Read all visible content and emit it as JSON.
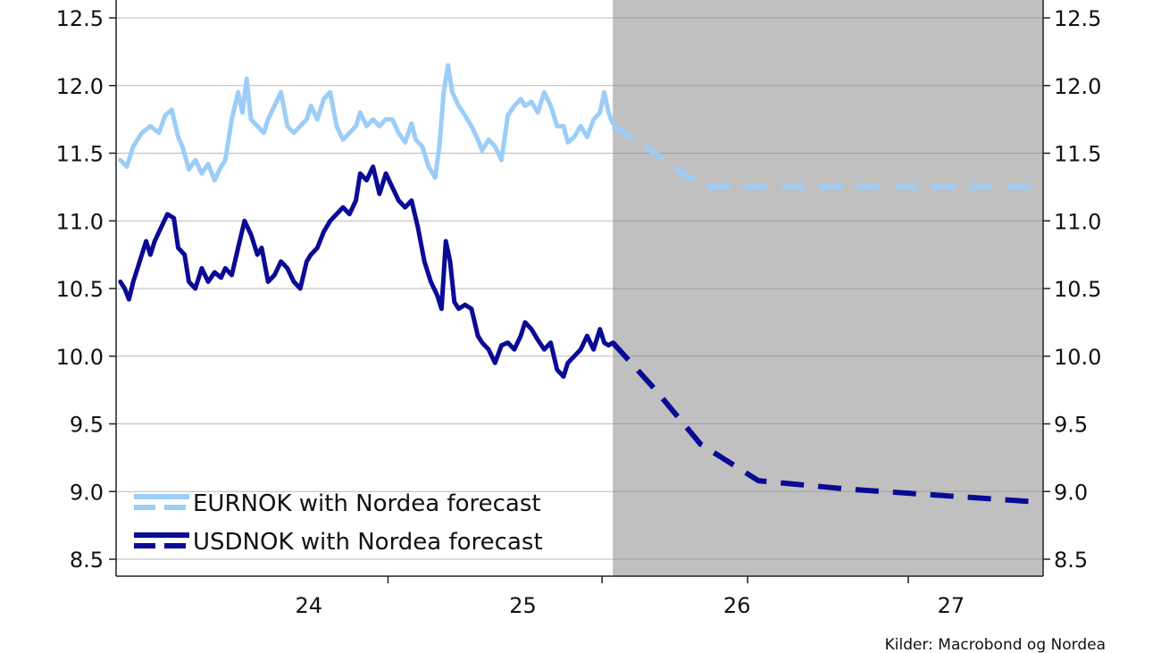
{
  "chart_data": {
    "type": "line",
    "source": "Kilder: Macrobond og Nordea",
    "y_axis": {
      "min": 8.5,
      "max": 12.5,
      "ticks": [
        "12.5",
        "12.0",
        "11.5",
        "11.0",
        "10.5",
        "10.0",
        "9.5",
        "9.0",
        "8.5"
      ],
      "tick_values": [
        12.5,
        12.0,
        11.5,
        11.0,
        10.5,
        10.0,
        9.5,
        9.0,
        8.5
      ],
      "grid": true,
      "right_axis_mirrors_left": true
    },
    "x_axis": {
      "labels": [
        {
          "label": "24",
          "x": 2024.5
        },
        {
          "label": "25",
          "x": 2025.5
        },
        {
          "label": "26",
          "x": 2026.5
        },
        {
          "label": "27",
          "x": 2027.5
        }
      ],
      "year_ticks": [
        2024.87,
        2025.87,
        2026.55,
        2027.3
      ],
      "range": [
        2023.6,
        2027.93
      ]
    },
    "forecast_region": {
      "start": 2025.92,
      "end": 2027.93,
      "color": "#c0c0c0"
    },
    "legend": {
      "placement": "bottom-left",
      "entries": [
        "EURNOK with Nordea forecast",
        "USDNOK with Nordea forecast"
      ]
    },
    "series": [
      {
        "name": "EURNOK with Nordea forecast",
        "color": "#9ccdf7",
        "history": [
          [
            2023.62,
            11.45
          ],
          [
            2023.65,
            11.4
          ],
          [
            2023.68,
            11.55
          ],
          [
            2023.72,
            11.65
          ],
          [
            2023.76,
            11.7
          ],
          [
            2023.8,
            11.65
          ],
          [
            2023.83,
            11.78
          ],
          [
            2023.86,
            11.82
          ],
          [
            2023.89,
            11.62
          ],
          [
            2023.91,
            11.55
          ],
          [
            2023.94,
            11.38
          ],
          [
            2023.97,
            11.45
          ],
          [
            2024.0,
            11.35
          ],
          [
            2024.03,
            11.42
          ],
          [
            2024.06,
            11.3
          ],
          [
            2024.09,
            11.4
          ],
          [
            2024.11,
            11.45
          ],
          [
            2024.14,
            11.75
          ],
          [
            2024.17,
            11.95
          ],
          [
            2024.19,
            11.8
          ],
          [
            2024.21,
            12.05
          ],
          [
            2024.23,
            11.75
          ],
          [
            2024.26,
            11.7
          ],
          [
            2024.29,
            11.65
          ],
          [
            2024.31,
            11.75
          ],
          [
            2024.34,
            11.85
          ],
          [
            2024.37,
            11.95
          ],
          [
            2024.4,
            11.7
          ],
          [
            2024.43,
            11.65
          ],
          [
            2024.46,
            11.7
          ],
          [
            2024.49,
            11.75
          ],
          [
            2024.51,
            11.85
          ],
          [
            2024.54,
            11.75
          ],
          [
            2024.57,
            11.9
          ],
          [
            2024.6,
            11.95
          ],
          [
            2024.63,
            11.7
          ],
          [
            2024.66,
            11.6
          ],
          [
            2024.69,
            11.65
          ],
          [
            2024.72,
            11.7
          ],
          [
            2024.74,
            11.8
          ],
          [
            2024.77,
            11.7
          ],
          [
            2024.8,
            11.75
          ],
          [
            2024.83,
            11.7
          ],
          [
            2024.86,
            11.75
          ],
          [
            2024.89,
            11.75
          ],
          [
            2024.92,
            11.65
          ],
          [
            2024.95,
            11.58
          ],
          [
            2024.98,
            11.72
          ],
          [
            2025.0,
            11.6
          ],
          [
            2025.03,
            11.55
          ],
          [
            2025.06,
            11.4
          ],
          [
            2025.09,
            11.32
          ],
          [
            2025.11,
            11.55
          ],
          [
            2025.13,
            11.95
          ],
          [
            2025.15,
            12.15
          ],
          [
            2025.17,
            11.95
          ],
          [
            2025.2,
            11.85
          ],
          [
            2025.23,
            11.78
          ],
          [
            2025.26,
            11.7
          ],
          [
            2025.29,
            11.6
          ],
          [
            2025.31,
            11.52
          ],
          [
            2025.34,
            11.6
          ],
          [
            2025.37,
            11.55
          ],
          [
            2025.4,
            11.45
          ],
          [
            2025.43,
            11.78
          ],
          [
            2025.46,
            11.85
          ],
          [
            2025.49,
            11.9
          ],
          [
            2025.51,
            11.85
          ],
          [
            2025.54,
            11.88
          ],
          [
            2025.57,
            11.8
          ],
          [
            2025.6,
            11.95
          ],
          [
            2025.63,
            11.85
          ],
          [
            2025.66,
            11.7
          ],
          [
            2025.69,
            11.7
          ],
          [
            2025.71,
            11.58
          ],
          [
            2025.74,
            11.62
          ],
          [
            2025.77,
            11.7
          ],
          [
            2025.8,
            11.62
          ],
          [
            2025.83,
            11.75
          ],
          [
            2025.86,
            11.8
          ],
          [
            2025.88,
            11.95
          ],
          [
            2025.9,
            11.8
          ],
          [
            2025.92,
            11.72
          ]
        ],
        "forecast": [
          [
            2025.92,
            11.7
          ],
          [
            2026.05,
            11.58
          ],
          [
            2026.2,
            11.4
          ],
          [
            2026.35,
            11.25
          ],
          [
            2027.93,
            11.25
          ]
        ]
      },
      {
        "name": "USDNOK with Nordea forecast",
        "color": "#0a0a96",
        "history": [
          [
            2023.62,
            10.55
          ],
          [
            2023.64,
            10.5
          ],
          [
            2023.66,
            10.42
          ],
          [
            2023.68,
            10.55
          ],
          [
            2023.71,
            10.7
          ],
          [
            2023.74,
            10.85
          ],
          [
            2023.76,
            10.75
          ],
          [
            2023.78,
            10.85
          ],
          [
            2023.81,
            10.95
          ],
          [
            2023.84,
            11.05
          ],
          [
            2023.87,
            11.02
          ],
          [
            2023.89,
            10.8
          ],
          [
            2023.92,
            10.75
          ],
          [
            2023.94,
            10.55
          ],
          [
            2023.97,
            10.5
          ],
          [
            2024.0,
            10.65
          ],
          [
            2024.03,
            10.55
          ],
          [
            2024.06,
            10.62
          ],
          [
            2024.09,
            10.58
          ],
          [
            2024.11,
            10.65
          ],
          [
            2024.14,
            10.6
          ],
          [
            2024.17,
            10.8
          ],
          [
            2024.2,
            11.0
          ],
          [
            2024.23,
            10.9
          ],
          [
            2024.26,
            10.75
          ],
          [
            2024.28,
            10.8
          ],
          [
            2024.31,
            10.55
          ],
          [
            2024.34,
            10.6
          ],
          [
            2024.37,
            10.7
          ],
          [
            2024.4,
            10.65
          ],
          [
            2024.43,
            10.55
          ],
          [
            2024.46,
            10.5
          ],
          [
            2024.49,
            10.7
          ],
          [
            2024.51,
            10.75
          ],
          [
            2024.54,
            10.8
          ],
          [
            2024.57,
            10.92
          ],
          [
            2024.6,
            11.0
          ],
          [
            2024.63,
            11.05
          ],
          [
            2024.66,
            11.1
          ],
          [
            2024.69,
            11.05
          ],
          [
            2024.72,
            11.15
          ],
          [
            2024.74,
            11.35
          ],
          [
            2024.77,
            11.3
          ],
          [
            2024.8,
            11.4
          ],
          [
            2024.83,
            11.2
          ],
          [
            2024.86,
            11.35
          ],
          [
            2024.89,
            11.25
          ],
          [
            2024.92,
            11.15
          ],
          [
            2024.95,
            11.1
          ],
          [
            2024.98,
            11.15
          ],
          [
            2025.01,
            10.95
          ],
          [
            2025.04,
            10.7
          ],
          [
            2025.07,
            10.55
          ],
          [
            2025.1,
            10.45
          ],
          [
            2025.12,
            10.35
          ],
          [
            2025.14,
            10.85
          ],
          [
            2025.16,
            10.7
          ],
          [
            2025.18,
            10.4
          ],
          [
            2025.2,
            10.35
          ],
          [
            2025.23,
            10.38
          ],
          [
            2025.26,
            10.35
          ],
          [
            2025.29,
            10.15
          ],
          [
            2025.31,
            10.1
          ],
          [
            2025.34,
            10.05
          ],
          [
            2025.37,
            9.95
          ],
          [
            2025.4,
            10.08
          ],
          [
            2025.43,
            10.1
          ],
          [
            2025.46,
            10.05
          ],
          [
            2025.49,
            10.15
          ],
          [
            2025.51,
            10.25
          ],
          [
            2025.54,
            10.2
          ],
          [
            2025.57,
            10.12
          ],
          [
            2025.6,
            10.05
          ],
          [
            2025.63,
            10.1
          ],
          [
            2025.66,
            9.9
          ],
          [
            2025.69,
            9.85
          ],
          [
            2025.71,
            9.95
          ],
          [
            2025.74,
            10.0
          ],
          [
            2025.77,
            10.05
          ],
          [
            2025.8,
            10.15
          ],
          [
            2025.83,
            10.05
          ],
          [
            2025.86,
            10.2
          ],
          [
            2025.88,
            10.1
          ],
          [
            2025.9,
            10.08
          ],
          [
            2025.92,
            10.1
          ]
        ],
        "forecast": [
          [
            2025.92,
            10.1
          ],
          [
            2026.12,
            9.75
          ],
          [
            2026.33,
            9.35
          ],
          [
            2026.6,
            9.08
          ],
          [
            2027.0,
            9.02
          ],
          [
            2027.93,
            8.92
          ]
        ]
      }
    ]
  }
}
